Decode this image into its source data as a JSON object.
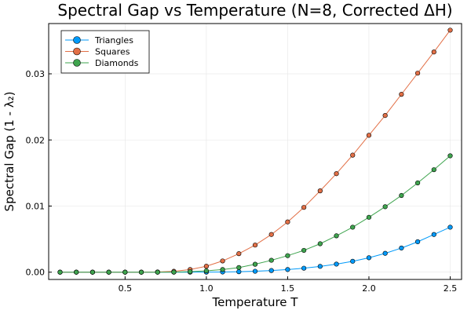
{
  "chart_data": {
    "type": "line",
    "title": "Spectral Gap vs Temperature (N=8, Corrected ΔH)",
    "xlabel": "Temperature T",
    "ylabel": "Spectral Gap (1 - λ₂)",
    "xlim": [
      0.03,
      2.57
    ],
    "ylim": [
      -0.0011,
      0.0376
    ],
    "xticks": [
      0.5,
      1.0,
      1.5,
      2.0,
      2.5
    ],
    "xtick_labels": [
      "0.5",
      "1.0",
      "1.5",
      "2.0",
      "2.5"
    ],
    "yticks": [
      0.0,
      0.01,
      0.02,
      0.03
    ],
    "ytick_labels": [
      "0.00",
      "0.01",
      "0.02",
      "0.03"
    ],
    "grid": true,
    "legend_position": "top-left",
    "x": [
      0.1,
      0.2,
      0.3,
      0.4,
      0.5,
      0.6,
      0.7,
      0.8,
      0.9,
      1.0,
      1.1,
      1.2,
      1.3,
      1.4,
      1.5,
      1.6,
      1.7,
      1.8,
      1.9,
      2.0,
      2.1,
      2.2,
      2.3,
      2.4,
      2.5
    ],
    "series": [
      {
        "name": "Triangles",
        "color": "#009AFA",
        "values": [
          0,
          0,
          0,
          0,
          0,
          0,
          0,
          0,
          0,
          1e-05,
          3e-05,
          7e-05,
          0.00014,
          0.00025,
          0.0004,
          0.0006,
          0.00088,
          0.00122,
          0.00165,
          0.00218,
          0.00285,
          0.00365,
          0.0046,
          0.0057,
          0.0068
        ]
      },
      {
        "name": "Squares",
        "color": "#E26F46",
        "values": [
          0,
          0,
          0,
          0,
          0,
          0,
          3e-05,
          0.00013,
          0.0004,
          0.0009,
          0.0017,
          0.0028,
          0.0041,
          0.0057,
          0.0076,
          0.0098,
          0.0123,
          0.0149,
          0.0177,
          0.0207,
          0.0237,
          0.0269,
          0.0301,
          0.0333,
          0.0366
        ]
      },
      {
        "name": "Diamonds",
        "color": "#3EA44E",
        "values": [
          0,
          0,
          0,
          0,
          0,
          0,
          0,
          2e-05,
          8e-05,
          0.0002,
          0.0004,
          0.0007,
          0.0012,
          0.0018,
          0.0025,
          0.0033,
          0.0043,
          0.0055,
          0.0068,
          0.0083,
          0.0099,
          0.0116,
          0.0135,
          0.0155,
          0.0176
        ]
      }
    ]
  }
}
